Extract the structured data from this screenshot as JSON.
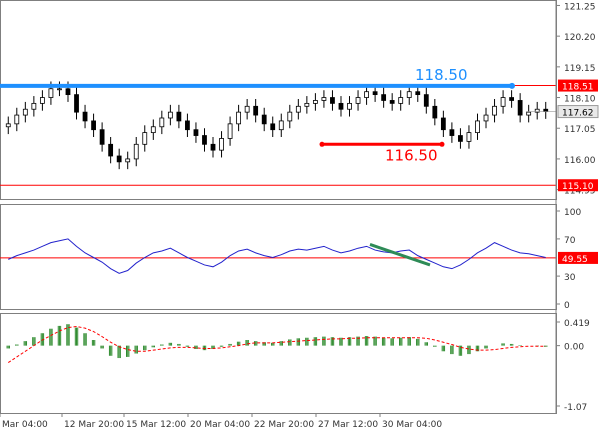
{
  "chart_data": [
    {
      "type": "candlestick",
      "panel": "price",
      "y_ticks": [
        "121.25",
        "120.20",
        "119.15",
        "118.10",
        "117.05",
        "116.00",
        "114.95"
      ],
      "ylim": [
        114.8,
        121.3
      ],
      "grid": false,
      "levels": [
        {
          "value": 118.51,
          "label": "118.51",
          "color": "#ff0000"
        },
        {
          "value": 115.1,
          "label": "115.10",
          "color": "#ff0000"
        }
      ],
      "current_price": {
        "value": 117.62,
        "label": "117.62"
      },
      "annotations": [
        {
          "text": "118.50",
          "value": 118.5,
          "color": "#1e90ff"
        },
        {
          "text": "116.50",
          "value": 116.5,
          "color": "#ff0000"
        }
      ],
      "close_series": [
        117.2,
        117.5,
        117.7,
        117.9,
        118.1,
        118.4,
        118.4,
        118.2,
        117.6,
        117.3,
        117.0,
        116.5,
        116.1,
        115.9,
        116.0,
        116.5,
        116.9,
        117.1,
        117.4,
        117.6,
        117.3,
        117.0,
        116.8,
        116.5,
        116.3,
        116.7,
        117.2,
        117.6,
        117.8,
        117.5,
        117.2,
        117.0,
        117.3,
        117.6,
        117.8,
        117.9,
        118.0,
        118.1,
        117.9,
        117.7,
        117.9,
        118.1,
        118.3,
        118.2,
        118.0,
        117.9,
        118.1,
        118.3,
        118.2,
        117.8,
        117.4,
        117.0,
        116.8,
        116.6,
        116.9,
        117.3,
        117.5,
        117.8,
        118.1,
        118.0,
        117.5,
        117.6,
        117.7,
        117.62
      ]
    },
    {
      "type": "line",
      "panel": "oscillator",
      "y_ticks": [
        "100",
        "70",
        "30",
        "0"
      ],
      "ylim": [
        0,
        100
      ],
      "level": {
        "value": 49.55,
        "label": "49.55",
        "color": "#ff0000"
      },
      "series": [
        {
          "values": [
            48,
            52,
            55,
            58,
            62,
            66,
            68,
            70,
            62,
            55,
            50,
            45,
            38,
            33,
            36,
            44,
            50,
            55,
            57,
            60,
            55,
            50,
            46,
            42,
            40,
            45,
            52,
            57,
            59,
            55,
            52,
            50,
            53,
            57,
            59,
            58,
            60,
            62,
            58,
            55,
            57,
            60,
            62,
            58,
            56,
            55,
            57,
            58,
            52,
            48,
            44,
            40,
            38,
            42,
            48,
            55,
            60,
            66,
            62,
            58,
            55,
            54,
            52,
            50
          ]
        }
      ],
      "divergence_line": {
        "color": "#2e8b57"
      }
    },
    {
      "type": "bar",
      "panel": "macd",
      "y_ticks": [
        "0.419",
        "0.00",
        "-1.07"
      ],
      "ylim": [
        -1.07,
        0.419
      ],
      "histogram": [
        -0.05,
        0.02,
        0.08,
        0.15,
        0.22,
        0.3,
        0.35,
        0.38,
        0.32,
        0.22,
        0.1,
        -0.05,
        -0.18,
        -0.22,
        -0.2,
        -0.14,
        -0.08,
        -0.03,
        0.02,
        0.05,
        0.03,
        -0.02,
        -0.06,
        -0.08,
        -0.06,
        -0.02,
        0.03,
        0.07,
        0.1,
        0.08,
        0.06,
        0.05,
        0.08,
        0.11,
        0.13,
        0.14,
        0.15,
        0.16,
        0.15,
        0.14,
        0.15,
        0.16,
        0.17,
        0.16,
        0.14,
        0.13,
        0.14,
        0.15,
        0.12,
        0.06,
        -0.02,
        -0.1,
        -0.15,
        -0.18,
        -0.15,
        -0.1,
        -0.05,
        0.0,
        0.04,
        0.03,
        0.01,
        0.0,
        -0.01,
        -0.02
      ],
      "signal": [
        -0.3,
        -0.2,
        -0.1,
        0.0,
        0.1,
        0.18,
        0.26,
        0.32,
        0.34,
        0.31,
        0.25,
        0.16,
        0.06,
        -0.02,
        -0.07,
        -0.1,
        -0.1,
        -0.08,
        -0.06,
        -0.04,
        -0.03,
        -0.03,
        -0.04,
        -0.05,
        -0.05,
        -0.04,
        -0.02,
        0.0,
        0.03,
        0.05,
        0.05,
        0.05,
        0.06,
        0.07,
        0.08,
        0.09,
        0.1,
        0.11,
        0.12,
        0.12,
        0.13,
        0.13,
        0.14,
        0.14,
        0.14,
        0.14,
        0.14,
        0.14,
        0.14,
        0.13,
        0.1,
        0.06,
        0.02,
        -0.03,
        -0.06,
        -0.08,
        -0.08,
        -0.07,
        -0.05,
        -0.03,
        -0.02,
        -0.01,
        -0.01,
        -0.01
      ]
    }
  ],
  "x_axis_labels": [
    "Mar 04:00",
    "12 Mar 20:00",
    "15 Mar 12:00",
    "20 Mar 04:00",
    "22 Mar 20:00",
    "27 Mar 12:00",
    "30 Mar 04:00"
  ]
}
